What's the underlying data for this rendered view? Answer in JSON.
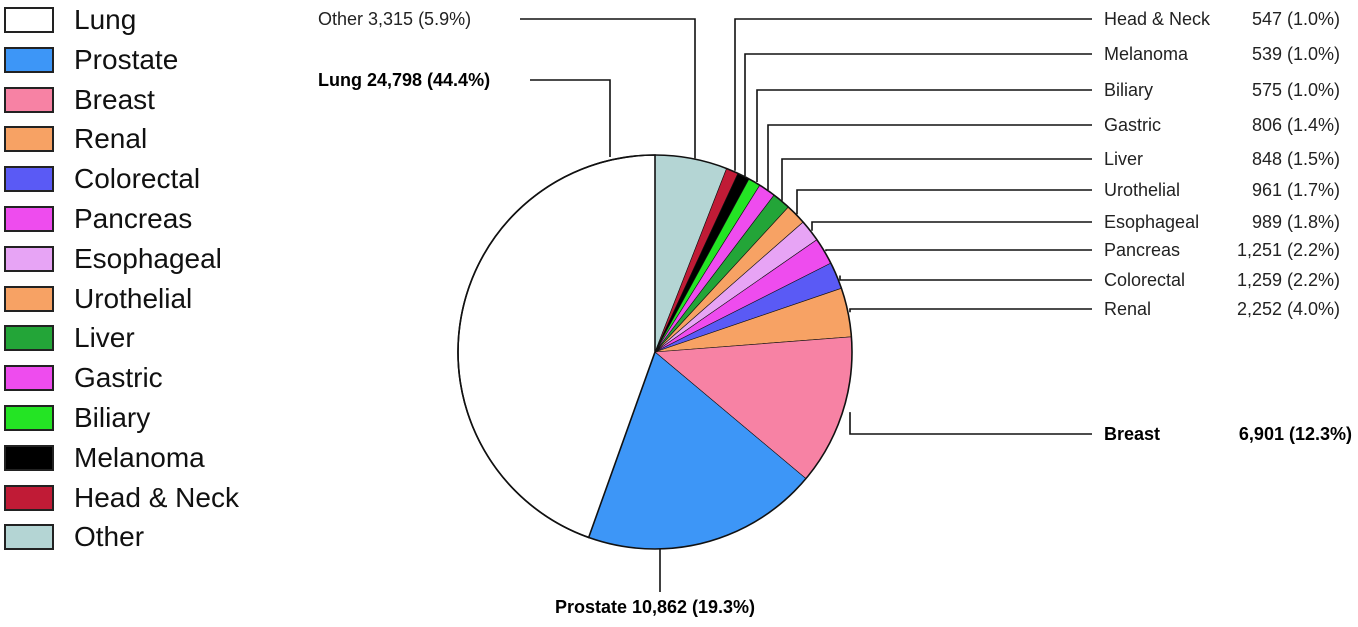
{
  "chart_data": {
    "type": "pie",
    "title": "",
    "slices": [
      {
        "name": "Lung",
        "count": "24,798",
        "pct": "(44.4%)",
        "value": 44.4,
        "color": "#ffffff",
        "bold": true
      },
      {
        "name": "Prostate",
        "count": "10,862",
        "pct": "(19.3%)",
        "value": 19.3,
        "color": "#3d96f7",
        "bold": true
      },
      {
        "name": "Breast",
        "count": "6,901",
        "pct": "(12.3%)",
        "value": 12.3,
        "color": "#f782a4",
        "bold": true
      },
      {
        "name": "Renal",
        "count": "2,252",
        "pct": "(4.0%)",
        "value": 4.0,
        "color": "#f7a264",
        "bold": false
      },
      {
        "name": "Colorectal",
        "count": "1,259",
        "pct": "(2.2%)",
        "value": 2.2,
        "color": "#5a5af5",
        "bold": false
      },
      {
        "name": "Pancreas",
        "count": "1,251",
        "pct": "(2.2%)",
        "value": 2.2,
        "color": "#ee4cee",
        "bold": false
      },
      {
        "name": "Esophageal",
        "count": "989",
        "pct": "(1.8%)",
        "value": 1.8,
        "color": "#e7a4f5",
        "bold": false
      },
      {
        "name": "Urothelial",
        "count": "961",
        "pct": "(1.7%)",
        "value": 1.7,
        "color": "#f7a264",
        "bold": false
      },
      {
        "name": "Liver",
        "count": "848",
        "pct": "(1.5%)",
        "value": 1.5,
        "color": "#23a538",
        "bold": false
      },
      {
        "name": "Gastric",
        "count": "806",
        "pct": "(1.4%)",
        "value": 1.4,
        "color": "#ee4cee",
        "bold": false
      },
      {
        "name": "Biliary",
        "count": "575",
        "pct": "(1.0%)",
        "value": 1.0,
        "color": "#24e424",
        "bold": false
      },
      {
        "name": "Melanoma",
        "count": "539",
        "pct": "(1.0%)",
        "value": 1.0,
        "color": "#000000",
        "bold": false
      },
      {
        "name": "Head & Neck",
        "count": "547",
        "pct": "(1.0%)",
        "value": 1.0,
        "color": "#c01b36",
        "bold": false
      },
      {
        "name": "Other",
        "count": "3,315",
        "pct": "(5.9%)",
        "value": 5.9,
        "color": "#b4d5d4",
        "bold": false
      }
    ]
  }
}
